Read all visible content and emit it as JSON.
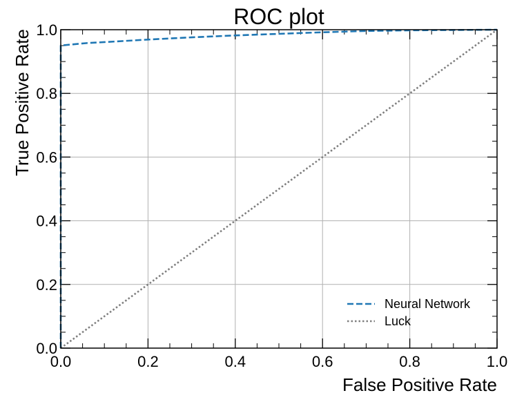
{
  "chart_data": {
    "type": "line",
    "title": "ROC plot",
    "xlabel": "False Positive Rate",
    "ylabel": "True Positive Rate",
    "xlim": [
      0.0,
      1.0
    ],
    "ylim": [
      0.0,
      1.0
    ],
    "x_ticks": [
      "0.0",
      "0.2",
      "0.4",
      "0.6",
      "0.8",
      "1.0"
    ],
    "y_ticks": [
      "0.0",
      "0.2",
      "0.4",
      "0.6",
      "0.8",
      "1.0"
    ],
    "grid": true,
    "legend_position": "lower-right",
    "series": [
      {
        "name": "Neural Network",
        "style": "dashed",
        "color": "#1f77b4",
        "x": [
          0.0,
          0.0,
          0.005,
          0.02,
          0.06,
          0.1,
          0.2,
          0.3,
          0.4,
          0.5,
          0.6,
          0.7,
          0.8,
          0.9,
          1.0
        ],
        "y": [
          0.0,
          0.95,
          0.951,
          0.953,
          0.958,
          0.961,
          0.969,
          0.976,
          0.982,
          0.987,
          0.992,
          0.996,
          0.998,
          0.999,
          1.0
        ]
      },
      {
        "name": "Luck",
        "style": "dotted",
        "color": "#7f7f7f",
        "x": [
          0.0,
          1.0
        ],
        "y": [
          0.0,
          1.0
        ]
      }
    ]
  }
}
